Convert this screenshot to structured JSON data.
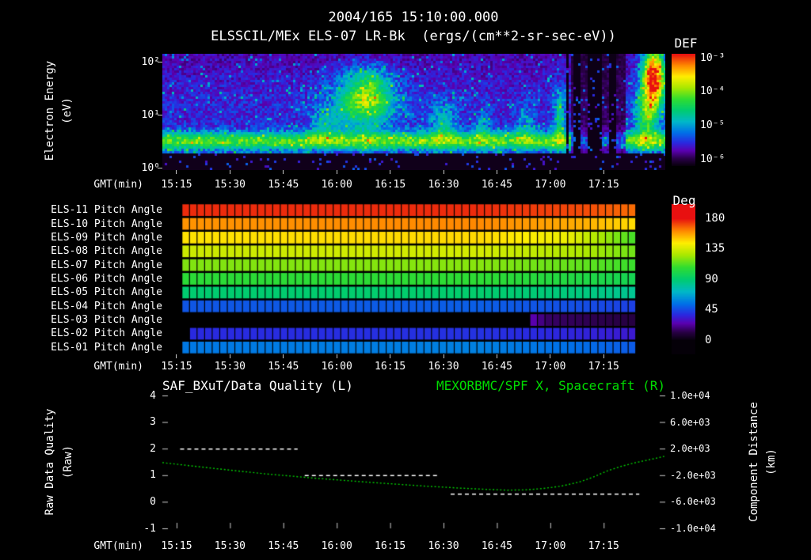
{
  "header": {
    "title": "2004/165 15:10:00.000"
  },
  "colors": {
    "background": "#000000",
    "text": "#ffffff",
    "green": "#00dd00",
    "curve_green": "#00cc00"
  },
  "time_axis": {
    "label": "GMT(min)",
    "range_minutes": [
      911,
      1052.3
    ],
    "ticks": [
      {
        "label": "15:15",
        "minute": 915
      },
      {
        "label": "15:30",
        "minute": 930
      },
      {
        "label": "15:45",
        "minute": 945
      },
      {
        "label": "16:00",
        "minute": 960
      },
      {
        "label": "16:15",
        "minute": 975
      },
      {
        "label": "16:30",
        "minute": 990
      },
      {
        "label": "16:45",
        "minute": 1005
      },
      {
        "label": "17:00",
        "minute": 1020
      },
      {
        "label": "17:15",
        "minute": 1035
      }
    ]
  },
  "colormap": [
    [
      0.0,
      "#050008"
    ],
    [
      0.07,
      "#2a0048"
    ],
    [
      0.14,
      "#5a00b0"
    ],
    [
      0.21,
      "#2a28e0"
    ],
    [
      0.3,
      "#0070e8"
    ],
    [
      0.4,
      "#00b8c8"
    ],
    [
      0.5,
      "#00cc70"
    ],
    [
      0.6,
      "#30dd30"
    ],
    [
      0.7,
      "#a8e800"
    ],
    [
      0.8,
      "#ffee00"
    ],
    [
      0.9,
      "#ff8800"
    ],
    [
      1.0,
      "#e81010"
    ]
  ],
  "chart_data": [
    {
      "type": "heatmap",
      "id": "electron-spectrogram",
      "title": "ELSSCIL/MEx ELS-07 LR-Bk  (ergs/(cm**2-sr-sec-eV))",
      "ylabel": "Electron Energy",
      "ylabel_units": "(eV)",
      "xlabel": "GMT(min)",
      "ylog10_range": [
        -0.045,
        2.149
      ],
      "yticks": [
        {
          "label": "10²",
          "log10": 2
        },
        {
          "label": "10¹",
          "log10": 1
        },
        {
          "label": "10⁰",
          "log10": 0
        }
      ],
      "colorbar": {
        "title": "DEF",
        "ticks": [
          {
            "label": "10⁻³",
            "exp": -3
          },
          {
            "label": "10⁻⁴",
            "exp": -4
          },
          {
            "label": "10⁻⁵",
            "exp": -5
          },
          {
            "label": "10⁻⁶",
            "exp": -6
          }
        ]
      },
      "background_level": 0.2,
      "low_energy_cutoff_log10": 0.28,
      "band": {
        "center_log10": 0.5,
        "sigma": 0.17,
        "amp": 0.42
      },
      "features": [
        {
          "minute": 967,
          "log10_energy": 1.15,
          "sigma_minute": 10,
          "sigma_log10": 0.5,
          "amp": 0.3
        },
        {
          "minute": 969,
          "log10_energy": 1.35,
          "sigma_minute": 6,
          "sigma_log10": 0.32,
          "amp": 0.25
        },
        {
          "minute": 969,
          "log10_energy": 1.75,
          "sigma_minute": 7,
          "sigma_log10": 0.25,
          "amp": 0.17
        },
        {
          "minute": 956,
          "log10_energy": 0.8,
          "sigma_minute": 4,
          "sigma_log10": 0.3,
          "amp": 0.15
        },
        {
          "minute": 990,
          "log10_energy": 0.85,
          "sigma_minute": 4,
          "sigma_log10": 0.4,
          "amp": 0.22
        },
        {
          "minute": 1001,
          "log10_energy": 0.75,
          "sigma_minute": 2.5,
          "sigma_log10": 0.3,
          "amp": 0.15
        },
        {
          "minute": 1013,
          "log10_energy": 0.8,
          "sigma_minute": 2.5,
          "sigma_log10": 0.35,
          "amp": 0.17
        },
        {
          "minute": 1022.5,
          "log10_energy": 0.95,
          "sigma_minute": 1.4,
          "sigma_log10": 0.55,
          "amp": 0.3
        },
        {
          "minute": 1049,
          "log10_energy": 1.7,
          "sigma_minute": 3.2,
          "sigma_log10": 0.55,
          "amp": 0.9
        },
        {
          "minute": 1047,
          "log10_energy": 0.95,
          "sigma_minute": 3.2,
          "sigma_log10": 0.45,
          "amp": 0.35
        }
      ],
      "dropout_minutes": [
        [
          1024.3,
          1025.3
        ],
        [
          1026.5,
          1028.5
        ],
        [
          1030.5,
          1034.5
        ],
        [
          1036.5,
          1038.5
        ]
      ],
      "attenuated_minutes": [
        1026,
        1041
      ]
    },
    {
      "type": "heatmap",
      "id": "pitch-angle-panel",
      "xlabel": "GMT(min)",
      "colorbar": {
        "title": "Deg",
        "ticks": [
          180,
          135,
          90,
          45,
          0
        ],
        "range": [
          0,
          180
        ]
      },
      "data_range_minutes": [
        916.5,
        1044
      ],
      "cells": 60,
      "rows": [
        {
          "label": "ELS-11 Pitch Angle",
          "points": [
            [
              916,
              176
            ],
            [
              1000,
              176
            ],
            [
              1030,
              171
            ],
            [
              1044,
              166
            ]
          ]
        },
        {
          "label": "ELS-10 Pitch Angle",
          "points": [
            [
              916,
              160
            ],
            [
              1000,
              162
            ],
            [
              1030,
              155
            ],
            [
              1044,
              147
            ]
          ]
        },
        {
          "label": "ELS-09 Pitch Angle",
          "points": [
            [
              916,
              146
            ],
            [
              1000,
              148
            ],
            [
              1025,
              140
            ],
            [
              1038,
              120
            ],
            [
              1044,
              110
            ]
          ]
        },
        {
          "label": "ELS-08 Pitch Angle",
          "points": [
            [
              916,
              133
            ],
            [
              1000,
              135
            ],
            [
              1030,
              127
            ],
            [
              1044,
              117
            ]
          ]
        },
        {
          "label": "ELS-07 Pitch Angle",
          "points": [
            [
              916,
              120
            ],
            [
              1000,
              121
            ],
            [
              1030,
              115
            ],
            [
              1044,
              109
            ]
          ]
        },
        {
          "label": "ELS-06 Pitch Angle",
          "points": [
            [
              916,
              106
            ],
            [
              1000,
              107
            ],
            [
              1030,
              102
            ],
            [
              1044,
              98
            ]
          ]
        },
        {
          "label": "ELS-05 Pitch Angle",
          "points": [
            [
              916,
              90
            ],
            [
              1000,
              91
            ],
            [
              1030,
              87
            ],
            [
              1044,
              83
            ]
          ]
        },
        {
          "label": "ELS-04 Pitch Angle",
          "points": [
            [
              916,
              48
            ],
            [
              1000,
              50
            ],
            [
              1030,
              46
            ],
            [
              1044,
              43
            ]
          ]
        },
        {
          "label": "ELS-03 Pitch Angle",
          "start_minute": 1014,
          "points": [
            [
              1014,
              28
            ],
            [
              1019,
              16
            ],
            [
              1044,
              11
            ]
          ]
        },
        {
          "label": "ELS-02 Pitch Angle",
          "start_minute": 919,
          "points": [
            [
              919,
              38
            ],
            [
              1000,
              40
            ],
            [
              1030,
              36
            ],
            [
              1044,
              33
            ]
          ]
        },
        {
          "label": "ELS-01 Pitch Angle",
          "points": [
            [
              916,
              56
            ],
            [
              1000,
              58
            ],
            [
              1030,
              53
            ],
            [
              1044,
              49
            ]
          ]
        }
      ]
    },
    {
      "type": "line",
      "id": "quality-and-distance",
      "left_series_title": "SAF_BXuT/Data Quality (L)",
      "right_series_title": "MEXORBMC/SPF X, Spacecraft (R)",
      "left_ylabel": "Raw Data Quality",
      "left_ylabel_units": "(Raw)",
      "right_ylabel": "Component Distance",
      "right_ylabel_units": "(km)",
      "xlabel": "GMT(min)",
      "left_range": [
        -1,
        4
      ],
      "left_ticks": [
        4,
        3,
        2,
        1,
        0,
        -1
      ],
      "right_range": [
        -10000,
        10000
      ],
      "right_ticks": [
        {
          "label": "1.0e+04",
          "value": 10000
        },
        {
          "label": "6.0e+03",
          "value": 6000
        },
        {
          "label": "2.0e+03",
          "value": 2000
        },
        {
          "label": "-2.0e+03",
          "value": -2000
        },
        {
          "label": "-6.0e+03",
          "value": -6000
        },
        {
          "label": "-1.0e+04",
          "value": -10000
        }
      ],
      "quality_segments": [
        {
          "start_minute": 916,
          "end_minute": 949,
          "value": 2
        },
        {
          "start_minute": 951,
          "end_minute": 989,
          "value": 1
        },
        {
          "start_minute": 992,
          "end_minute": 1045,
          "value": 0.3
        }
      ],
      "spacecraft_x_km": [
        [
          911,
          -100
        ],
        [
          925,
          -950
        ],
        [
          940,
          -1800
        ],
        [
          955,
          -2500
        ],
        [
          970,
          -3100
        ],
        [
          985,
          -3650
        ],
        [
          995,
          -3950
        ],
        [
          1003,
          -4150
        ],
        [
          1008,
          -4250
        ],
        [
          1013,
          -4200
        ],
        [
          1018,
          -4000
        ],
        [
          1023,
          -3650
        ],
        [
          1028,
          -3050
        ],
        [
          1032,
          -2300
        ],
        [
          1036,
          -1350
        ],
        [
          1040,
          -650
        ],
        [
          1044,
          -100
        ],
        [
          1048,
          350
        ],
        [
          1052,
          830
        ]
      ]
    }
  ]
}
